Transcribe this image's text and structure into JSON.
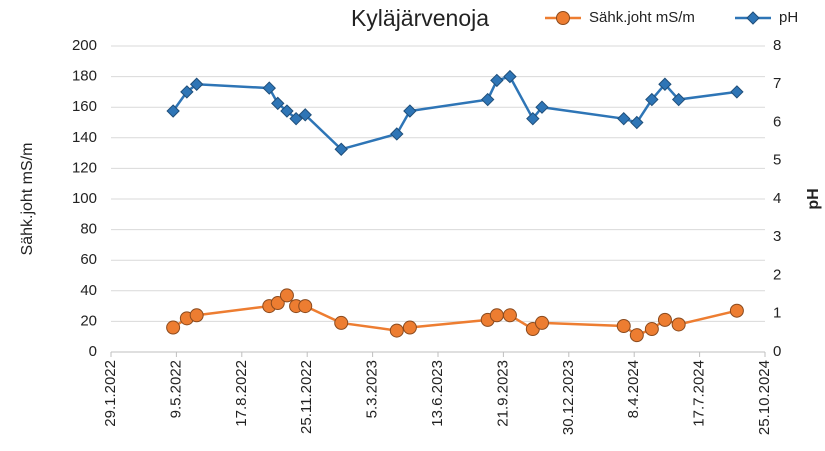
{
  "chart_data": {
    "type": "line",
    "title": "Kyläjärvenoja",
    "ylabel": "Sähk.joht mS/m",
    "y2label": "pH",
    "x": [
      "2022-05-04",
      "2022-05-25",
      "2022-06-09",
      "2022-09-28",
      "2022-10-11",
      "2022-10-25",
      "2022-11-08",
      "2022-11-22",
      "2023-01-16",
      "2023-04-11",
      "2023-05-01",
      "2023-08-28",
      "2023-09-11",
      "2023-10-01",
      "2023-11-05",
      "2023-11-19",
      "2024-03-23",
      "2024-04-12",
      "2024-05-05",
      "2024-05-25",
      "2024-06-15",
      "2024-09-12"
    ],
    "series": [
      {
        "name": "Sähk.joht mS/m",
        "color": "#ED7D31",
        "axis": "y",
        "marker": "circle",
        "values": [
          16,
          22,
          24,
          30,
          32,
          37,
          30,
          30,
          19,
          14,
          16,
          21,
          24,
          24,
          15,
          19,
          17,
          11,
          15,
          21,
          18,
          27
        ]
      },
      {
        "name": "pH",
        "color": "#2E75B6",
        "axis": "y2",
        "marker": "diamond",
        "values": [
          6.3,
          6.8,
          7.0,
          6.9,
          6.5,
          6.3,
          6.1,
          6.2,
          5.3,
          5.7,
          6.3,
          6.6,
          7.1,
          7.2,
          6.1,
          6.4,
          6.1,
          6.0,
          6.6,
          7.0,
          6.6,
          6.8
        ]
      }
    ],
    "xlim": [
      "2022-01-29",
      "2024-10-25"
    ],
    "xticks": [
      {
        "value": "2022-01-29",
        "label": "29.1.2022"
      },
      {
        "value": "2022-05-09",
        "label": "9.5.2022"
      },
      {
        "value": "2022-08-17",
        "label": "17.8.2022"
      },
      {
        "value": "2022-11-25",
        "label": "25.11.2022"
      },
      {
        "value": "2023-03-05",
        "label": "5.3.2023"
      },
      {
        "value": "2023-06-13",
        "label": "13.6.2023"
      },
      {
        "value": "2023-09-21",
        "label": "21.9.2023"
      },
      {
        "value": "2023-12-30",
        "label": "30.12.2023"
      },
      {
        "value": "2024-04-08",
        "label": "8.4.2024"
      },
      {
        "value": "2024-07-17",
        "label": "17.7.2024"
      },
      {
        "value": "2024-10-25",
        "label": "25.10.2024"
      }
    ],
    "ylim": [
      0,
      200
    ],
    "yticks": [
      0,
      20,
      40,
      60,
      80,
      100,
      120,
      140,
      160,
      180,
      200
    ],
    "y2lim": [
      0,
      8
    ],
    "y2ticks": [
      0,
      1,
      2,
      3,
      4,
      5,
      6,
      7,
      8
    ],
    "grid": true,
    "legend": "top-right"
  }
}
